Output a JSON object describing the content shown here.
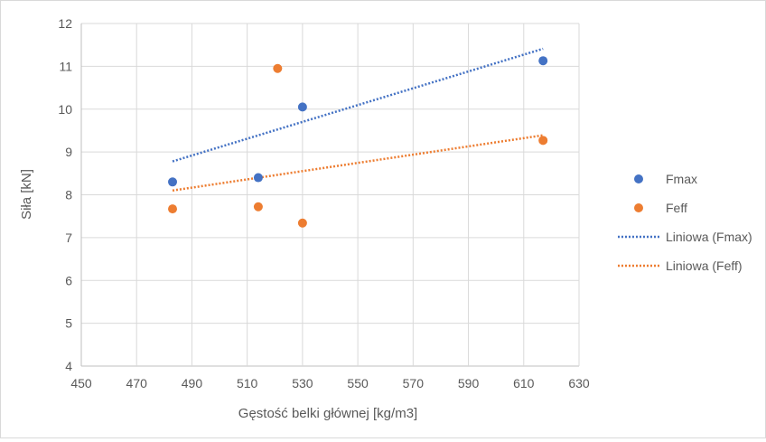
{
  "chart_data": {
    "type": "scatter",
    "title": "",
    "xlabel": "Gęstość belki głównej [kg/m3]",
    "ylabel": "Siła [kN]",
    "xlim": [
      450,
      630
    ],
    "ylim": [
      4,
      12
    ],
    "xticks": [
      450,
      470,
      490,
      510,
      530,
      550,
      570,
      590,
      610,
      630
    ],
    "yticks": [
      4,
      5,
      6,
      7,
      8,
      9,
      10,
      11,
      12
    ],
    "grid": true,
    "legend_position": "right",
    "series": [
      {
        "name": "Fmax",
        "color": "#4472C4",
        "points": [
          [
            483,
            8.3
          ],
          [
            514,
            8.4
          ],
          [
            530,
            10.05
          ],
          [
            617,
            11.13
          ]
        ]
      },
      {
        "name": "Feff",
        "color": "#ED7D31",
        "points": [
          [
            483,
            7.67
          ],
          [
            514,
            7.72
          ],
          [
            521,
            10.95
          ],
          [
            530,
            7.34
          ],
          [
            617,
            9.27
          ]
        ]
      }
    ],
    "trendlines": [
      {
        "name": "Liniowa (Fmax)",
        "color": "#4472C4",
        "x": [
          483,
          617
        ],
        "y": [
          8.78,
          11.41
        ]
      },
      {
        "name": "Liniowa (Feff)",
        "color": "#ED7D31",
        "x": [
          483,
          617
        ],
        "y": [
          8.1,
          9.39
        ]
      }
    ]
  }
}
